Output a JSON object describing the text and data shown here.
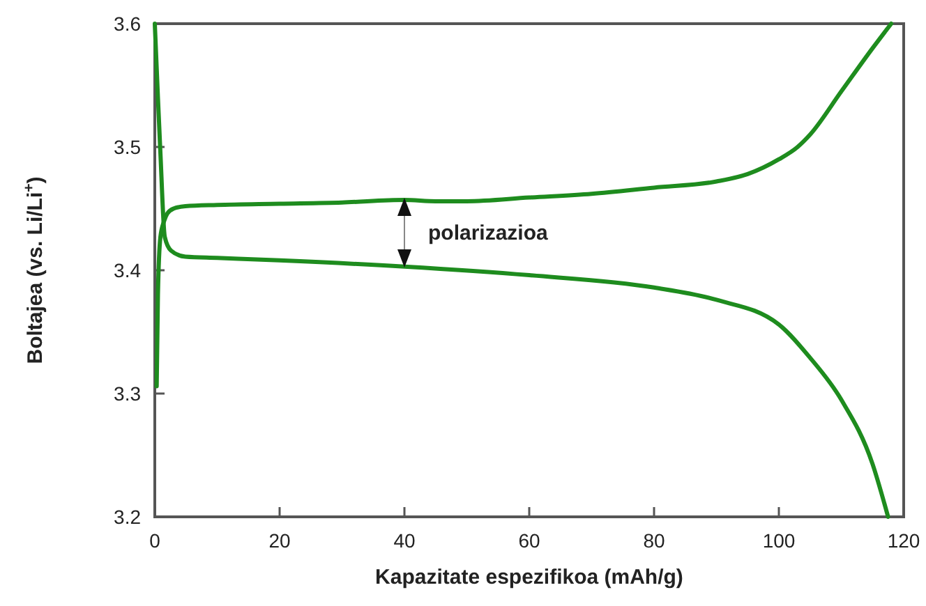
{
  "chart_data": {
    "type": "line",
    "xlabel": "Kapazitate espezifikoa (mAh/g)",
    "ylabel": "Boltajea (vs. Li/Li$^{+}$)",
    "xlim": [
      0,
      120
    ],
    "ylim": [
      3.2,
      3.6
    ],
    "xticks": [
      0,
      20,
      40,
      60,
      80,
      100,
      120
    ],
    "yticks": [
      3.2,
      3.3,
      3.4,
      3.5,
      3.6
    ],
    "grid": false,
    "marker": "none",
    "line_style": "solid",
    "series": [
      {
        "color": "#1e8c1e",
        "x": [
          0.3,
          0.5,
          0.9,
          1.5,
          2,
          3,
          4.9,
          10,
          20,
          30,
          40,
          45,
          50,
          60,
          70,
          80,
          90,
          95,
          100,
          103,
          105,
          110,
          115,
          118
        ],
        "values": [
          3.306,
          3.38,
          3.427,
          3.44,
          3.446,
          3.45,
          3.452,
          3.453,
          3.454,
          3.455,
          3.457,
          3.456,
          3.456,
          3.459,
          3.462,
          3.467,
          3.472,
          3.478,
          3.49,
          3.5,
          3.51,
          3.545,
          3.58,
          3.6
        ]
      },
      {
        "color": "#1e8c1e",
        "x": [
          0,
          0.5,
          0.9,
          1.6,
          2.6,
          4.9,
          10,
          20,
          40,
          60,
          80,
          90,
          100,
          105,
          110,
          115,
          117.5
        ],
        "values": [
          3.6,
          3.54,
          3.495,
          3.427,
          3.416,
          3.411,
          3.41,
          3.408,
          3.403,
          3.396,
          3.386,
          3.376,
          3.356,
          3.329,
          3.295,
          3.243,
          3.2
        ]
      }
    ],
    "annotations": [
      "polarizazioa"
    ]
  }
}
